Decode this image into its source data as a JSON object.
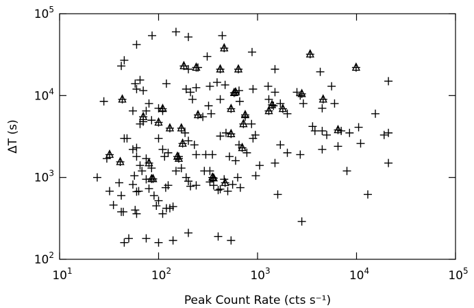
{
  "chart_data": {
    "type": "scatter",
    "x_label": "Peak Count Rate (cts s⁻¹)",
    "y_label": "ΔT (s)",
    "log_x": true,
    "log_y": true,
    "xlim": [
      10,
      100000
    ],
    "ylim": [
      100,
      100000
    ],
    "xticks": [
      {
        "value": 10,
        "label": "10",
        "sup": "1"
      },
      {
        "value": 100,
        "label": "10",
        "sup": "2"
      },
      {
        "value": 1000,
        "label": "10",
        "sup": "3"
      },
      {
        "value": 10000,
        "label": "10",
        "sup": "4"
      },
      {
        "value": 100000,
        "label": "10",
        "sup": "5"
      }
    ],
    "yticks": [
      {
        "value": 100,
        "label": "10",
        "sup": "2"
      },
      {
        "value": 1000,
        "label": "10",
        "sup": "3"
      },
      {
        "value": 10000,
        "label": "10",
        "sup": "4"
      },
      {
        "value": 100000,
        "label": "10",
        "sup": "5"
      }
    ],
    "series": [
      {
        "marker": "plus",
        "color": "#000000",
        "x": [
          150,
          86,
          200,
          440,
          60,
          310,
          880,
          45,
          42,
          250,
          200,
          1500,
          4300,
          21000,
          65,
          58,
          70,
          60,
          120,
          190,
          240,
          210,
          330,
          390,
          470,
          650,
          900,
          1280,
          1500,
          2500,
          2700,
          5600,
          6000,
          4500,
          28,
          80,
          100,
          110,
          75,
          70,
          65,
          55,
          85,
          220,
          280,
          320,
          340,
          420,
          660,
          750,
          870,
          1300,
          1450,
          1700,
          2000,
          2900,
          3600,
          3800,
          4500,
          5000,
          7000,
          8500,
          10500,
          15500,
          19000,
          21000,
          45,
          48,
          55,
          60,
          60,
          75,
          85,
          100,
          110,
          115,
          125,
          160,
          185,
          200,
          230,
          240,
          300,
          330,
          350,
          420,
          480,
          520,
          600,
          650,
          780,
          900,
          950,
          1050,
          1500,
          1700,
          2000,
          2700,
          4500,
          6500,
          11000,
          21000,
          30,
          24,
          32,
          35,
          40,
          42,
          42,
          44,
          50,
          55,
          57,
          60,
          63,
          58,
          60,
          65,
          68,
          75,
          80,
          90,
          95,
          100,
          110,
          120,
          130,
          118,
          125,
          140,
          150,
          170,
          190,
          200,
          210,
          240,
          290,
          330,
          360,
          400,
          420,
          460,
          500,
          560,
          630,
          670,
          960,
          1600,
          2800,
          8000,
          13000,
          45,
          75,
          100,
          140,
          200,
          400,
          540
        ],
        "y": [
          60000,
          54000,
          52000,
          54000,
          42000,
          30000,
          34000,
          27000,
          23000,
          22000,
          21000,
          21000,
          19500,
          15000,
          15500,
          14000,
          11500,
          12000,
          14000,
          12000,
          12500,
          11000,
          13000,
          14500,
          13500,
          11500,
          12000,
          13000,
          11000,
          11000,
          10000,
          13000,
          8000,
          7000,
          8500,
          8000,
          7000,
          6500,
          6500,
          4800,
          4500,
          6500,
          5000,
          9000,
          5500,
          7500,
          6000,
          9000,
          8500,
          5500,
          4500,
          9000,
          7500,
          8000,
          6000,
          8000,
          4200,
          3700,
          3700,
          3300,
          3700,
          3500,
          4100,
          6000,
          3300,
          3500,
          3000,
          3000,
          2200,
          2300,
          1800,
          1700,
          1300,
          3000,
          2200,
          1800,
          2000,
          1800,
          3500,
          2800,
          2500,
          1900,
          1900,
          1200,
          1900,
          3200,
          3500,
          1800,
          1600,
          2500,
          2000,
          3000,
          3300,
          1400,
          1500,
          2500,
          2000,
          1900,
          2200,
          2400,
          2600,
          1500,
          1700,
          1000,
          680,
          460,
          860,
          600,
          380,
          380,
          180,
          820,
          1050,
          670,
          680,
          400,
          360,
          1400,
          1200,
          950,
          730,
          600,
          450,
          520,
          360,
          420,
          420,
          750,
          800,
          440,
          1200,
          1300,
          1000,
          900,
          780,
          800,
          1200,
          880,
          800,
          700,
          720,
          950,
          680,
          820,
          1000,
          750,
          1050,
          620,
          290,
          1200,
          620,
          160,
          180,
          160,
          170,
          210,
          190,
          170
        ]
      },
      {
        "marker": "triangle",
        "color": "#000000",
        "x": [
          32,
          41,
          43,
          70,
          85,
          88,
          80,
          100,
          110,
          130,
          155,
          160,
          175,
          170,
          180,
          250,
          240,
          350,
          360,
          420,
          460,
          470,
          540,
          540,
          580,
          600,
          700,
          720,
          750,
          640,
          1300,
          1400,
          1800,
          2800,
          3400,
          4600,
          9900,
          6500
        ],
        "y": [
          1900,
          1550,
          9000,
          5500,
          960,
          960,
          1500,
          4700,
          6900,
          4000,
          1800,
          1700,
          2600,
          4000,
          23000,
          5800,
          22000,
          1000,
          980,
          21000,
          38000,
          860,
          3400,
          6900,
          10800,
          11000,
          2300,
          4500,
          5800,
          21000,
          6500,
          7700,
          6900,
          10500,
          32000,
          9000,
          22000,
          3800
        ]
      }
    ]
  }
}
